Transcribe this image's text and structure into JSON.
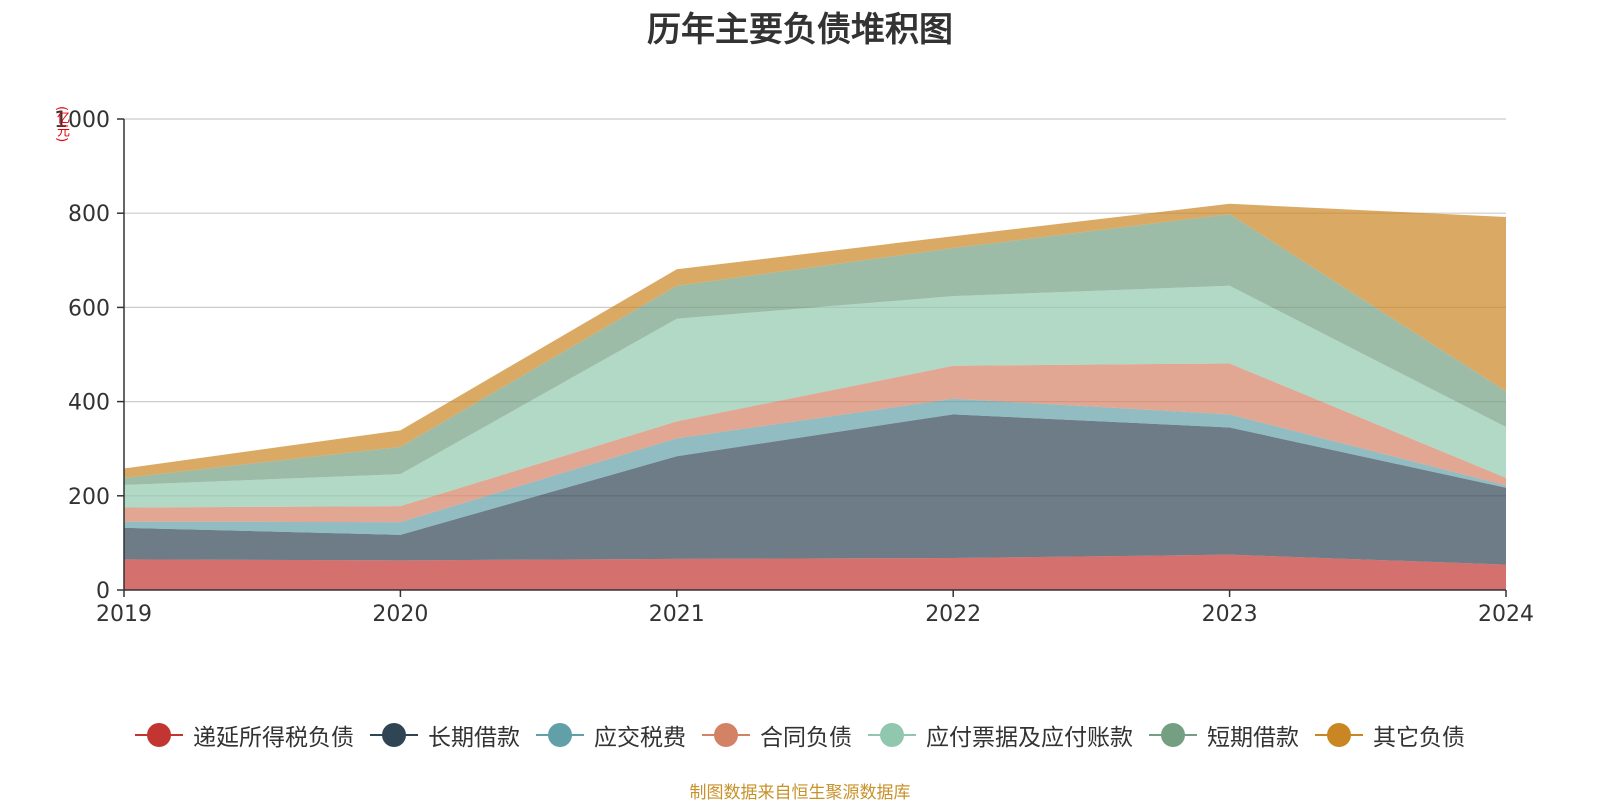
{
  "chart_data": {
    "type": "area",
    "stacked": true,
    "title": "历年主要负债堆积图",
    "ylabel": "(亿元)",
    "xlabel": "",
    "x": [
      "2019",
      "2020",
      "2021",
      "2022",
      "2023",
      "2024"
    ],
    "ylim": [
      0,
      1000
    ],
    "yticks": [
      0,
      200,
      400,
      600,
      800,
      1000
    ],
    "grid": true,
    "legend_position": "bottom",
    "series": [
      {
        "name": "递延所得税负债",
        "color": "#c23531",
        "values": [
          65,
          63,
          66,
          68,
          75,
          54
        ]
      },
      {
        "name": "长期借款",
        "color": "#2f4554",
        "values": [
          67,
          54,
          218,
          305,
          270,
          163
        ]
      },
      {
        "name": "应交税费",
        "color": "#61a0a8",
        "values": [
          13,
          27,
          38,
          33,
          28,
          5
        ]
      },
      {
        "name": "合同负债",
        "color": "#d48265",
        "values": [
          30,
          34,
          36,
          70,
          108,
          16
        ]
      },
      {
        "name": "应付票据及应付账款",
        "color": "#91c7ae",
        "values": [
          48,
          68,
          218,
          148,
          165,
          108
        ]
      },
      {
        "name": "短期借款",
        "color": "#749f83",
        "values": [
          15,
          58,
          70,
          102,
          152,
          76
        ]
      },
      {
        "name": "其它负债",
        "color": "#ca8622",
        "values": [
          20,
          35,
          35,
          25,
          22,
          370
        ]
      }
    ]
  },
  "source_note": "制图数据来自恒生聚源数据库"
}
